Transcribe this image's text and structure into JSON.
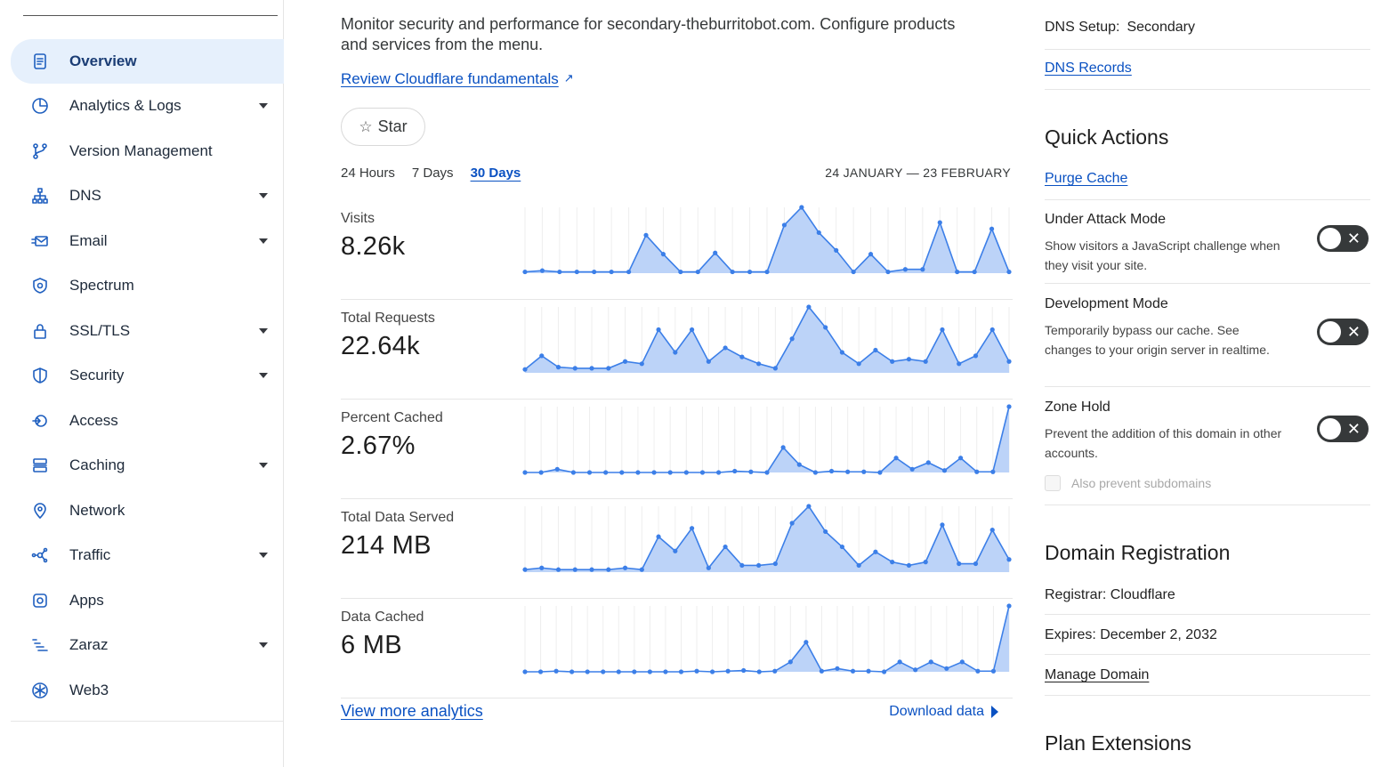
{
  "sidebar": {
    "items": [
      {
        "label": "Overview",
        "icon": "document-icon",
        "has_caret": false,
        "active": true
      },
      {
        "label": "Analytics & Logs",
        "icon": "pie-chart-icon",
        "has_caret": true
      },
      {
        "label": "Version Management",
        "icon": "branch-icon",
        "has_caret": false
      },
      {
        "label": "DNS",
        "icon": "sitemap-icon",
        "has_caret": true
      },
      {
        "label": "Email",
        "icon": "envelope-icon",
        "has_caret": true
      },
      {
        "label": "Spectrum",
        "icon": "shield-badge-icon",
        "has_caret": false
      },
      {
        "label": "SSL/TLS",
        "icon": "lock-icon",
        "has_caret": true
      },
      {
        "label": "Security",
        "icon": "shield-icon",
        "has_caret": true
      },
      {
        "label": "Access",
        "icon": "access-icon",
        "has_caret": false
      },
      {
        "label": "Caching",
        "icon": "server-stack-icon",
        "has_caret": true
      },
      {
        "label": "Network",
        "icon": "location-pin-icon",
        "has_caret": false
      },
      {
        "label": "Traffic",
        "icon": "nodes-icon",
        "has_caret": true
      },
      {
        "label": "Apps",
        "icon": "apps-icon",
        "has_caret": false
      },
      {
        "label": "Zaraz",
        "icon": "zaraz-icon",
        "has_caret": true
      },
      {
        "label": "Web3",
        "icon": "web3-icon",
        "has_caret": false
      }
    ]
  },
  "main": {
    "intro": "Monitor security and performance for secondary-theburritobot.com. Configure products and services from the menu.",
    "fundamentals_link": "Review Cloudflare fundamentals",
    "star_label": "Star",
    "ranges": [
      "24 Hours",
      "7 Days",
      "30 Days"
    ],
    "selected_range": "30 Days",
    "date_range": "24 JANUARY — 23 FEBRUARY",
    "view_more": "View more analytics",
    "download": "Download data",
    "accent_color": "#0a51c2",
    "chart_fill": "#bcd3f8",
    "chart_line": "#3c7fe8"
  },
  "chart_data": [
    {
      "type": "area",
      "title": "Visits",
      "value_label": "8.26k",
      "values": [
        1,
        2,
        1,
        1,
        1,
        1,
        1,
        30,
        15,
        1,
        1,
        16,
        1,
        1,
        1,
        38,
        52,
        32,
        18,
        1,
        15,
        1,
        3,
        3,
        40,
        1,
        1,
        35,
        1
      ]
    },
    {
      "type": "area",
      "title": "Total Requests",
      "value_label": "22.64k",
      "values": [
        3,
        15,
        5,
        4,
        4,
        4,
        10,
        8,
        38,
        18,
        38,
        10,
        22,
        14,
        8,
        4,
        30,
        58,
        40,
        18,
        8,
        20,
        10,
        12,
        10,
        38,
        8,
        15,
        38,
        10
      ]
    },
    {
      "type": "area",
      "title": "Percent Cached",
      "value_label": "2.67%",
      "values": [
        0,
        0,
        5,
        0,
        0,
        0,
        0,
        0,
        0,
        0,
        0,
        0,
        0,
        2,
        1,
        0,
        38,
        12,
        0,
        2,
        1,
        1,
        0,
        22,
        5,
        15,
        3,
        22,
        1,
        1,
        100
      ]
    },
    {
      "type": "area",
      "title": "Total Data Served",
      "value_label": "214 MB",
      "values": [
        3,
        5,
        3,
        3,
        3,
        3,
        5,
        3,
        42,
        25,
        52,
        5,
        30,
        8,
        8,
        10,
        58,
        78,
        48,
        30,
        8,
        24,
        12,
        8,
        12,
        56,
        10,
        10,
        50,
        15
      ]
    },
    {
      "type": "area",
      "title": "Data Cached",
      "value_label": "6 MB",
      "values": [
        0,
        0,
        1,
        0,
        0,
        0,
        0,
        0,
        0,
        0,
        0,
        1,
        0,
        1,
        2,
        0,
        1,
        15,
        45,
        1,
        5,
        1,
        1,
        0,
        15,
        3,
        15,
        5,
        15,
        1,
        1,
        100
      ]
    }
  ],
  "right": {
    "dns_setup_label": "DNS Setup:",
    "dns_setup_value": "Secondary",
    "dns_records": "DNS Records",
    "quick_actions": "Quick Actions",
    "purge_cache": "Purge Cache",
    "toggles": [
      {
        "title": "Under Attack Mode",
        "desc": "Show visitors a JavaScript challenge when they visit your site."
      },
      {
        "title": "Development Mode",
        "desc": "Temporarily bypass our cache. See changes to your origin server in realtime."
      },
      {
        "title": "Zone Hold",
        "desc": "Prevent the addition of this domain in other accounts."
      }
    ],
    "also_prevent": "Also prevent subdomains",
    "domain_registration": "Domain Registration",
    "registrar": "Registrar: Cloudflare",
    "expires": "Expires: December 2, 2032",
    "manage_domain": "Manage Domain",
    "plan_extensions": "Plan Extensions"
  }
}
